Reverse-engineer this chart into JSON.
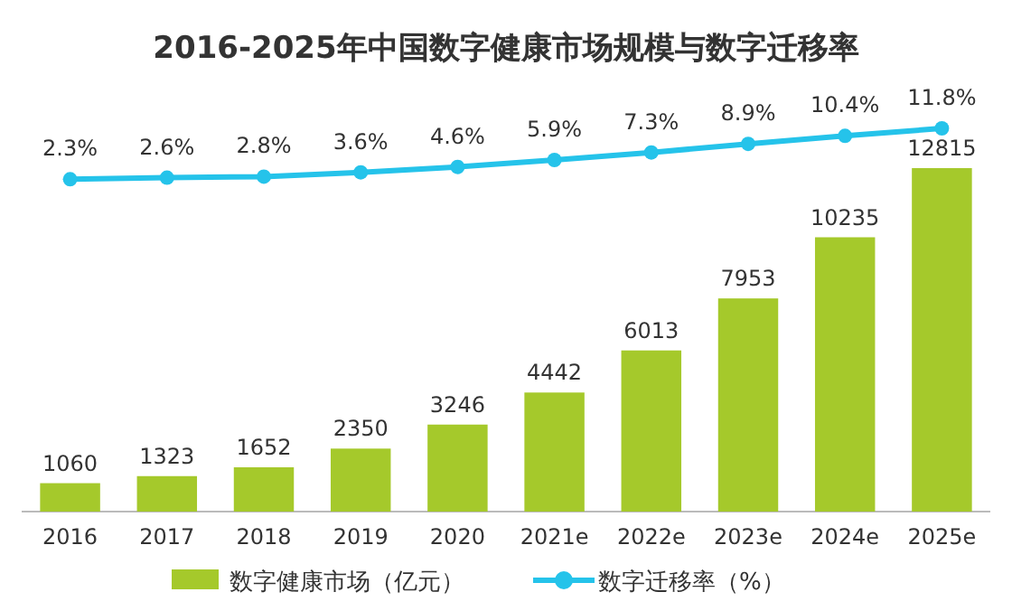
{
  "chart_data": {
    "type": "bar",
    "title": "2016-2025年中国数字健康市场规模与数字迁移率",
    "categories": [
      "2016",
      "2017",
      "2018",
      "2019",
      "2020",
      "2021e",
      "2022e",
      "2023e",
      "2024e",
      "2025e"
    ],
    "series": [
      {
        "name": "数字健康市场（亿元）",
        "color": "#a5c92b",
        "values": [
          1060,
          1323,
          1652,
          2350,
          3246,
          4442,
          6013,
          7953,
          10235,
          12815
        ],
        "value_labels": [
          "1060",
          "1323",
          "1652",
          "2350",
          "3246",
          "4442",
          "6013",
          "7953",
          "10235",
          "12815"
        ]
      },
      {
        "name": "数字迁移率（%）",
        "type": "line",
        "axis": "y2",
        "color": "#25c3ea",
        "marker": "circle",
        "values": [
          2.3,
          2.6,
          2.8,
          3.6,
          4.6,
          5.9,
          7.3,
          8.9,
          10.4,
          11.8
        ],
        "value_labels": [
          "2.3%",
          "2.6%",
          "2.8%",
          "3.6%",
          "4.6%",
          "5.9%",
          "7.3%",
          "8.9%",
          "10.4%",
          "11.8%"
        ]
      }
    ],
    "tick_labels": "x",
    "legend": "bottom"
  }
}
